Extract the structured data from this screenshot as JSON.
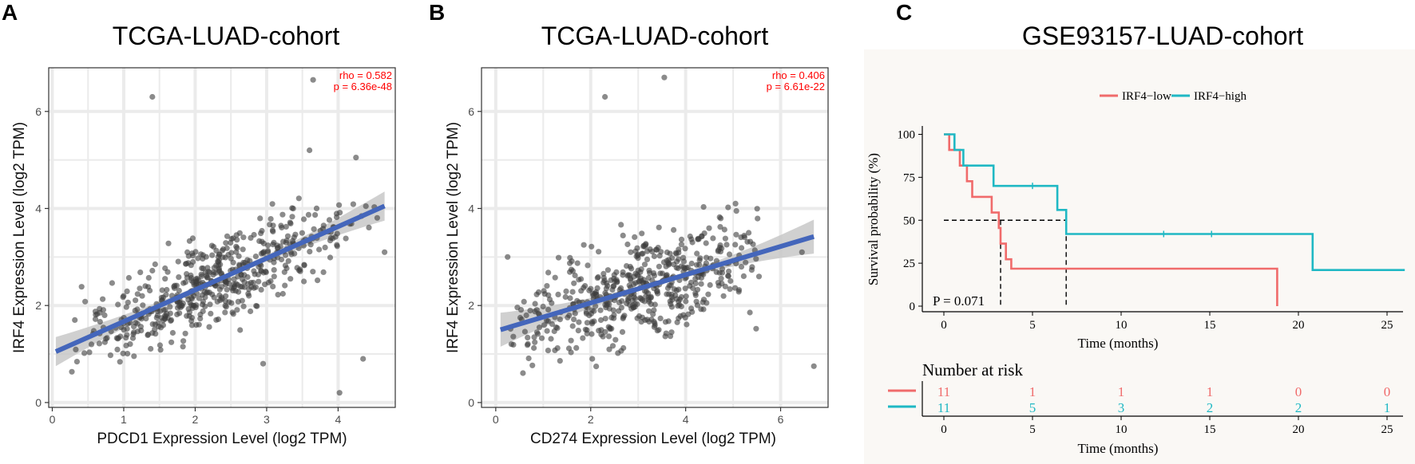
{
  "panel_labels": [
    "A",
    "B",
    "C"
  ],
  "colors": {
    "point": "#3d3d3d",
    "fit_line": "#4466bb",
    "ci_band": "#c8c8c8",
    "stat_text": "#ff0000",
    "km_low": "#f06b6b",
    "km_high": "#1fb8c4",
    "grid": "#ebebeb"
  },
  "chart_data": [
    {
      "type": "scatter",
      "panel": "A",
      "title": "TCGA-LUAD-cohort",
      "xlabel": "PDCD1 Expression Level (log2 TPM)",
      "ylabel": "IRF4 Expression Level (log2 TPM)",
      "xlim": [
        -0.05,
        4.8
      ],
      "ylim": [
        -0.1,
        6.9
      ],
      "xticks": [
        0,
        1,
        2,
        3,
        4
      ],
      "yticks": [
        0,
        2,
        4,
        6
      ],
      "stats": [
        "rho = 0.582",
        "p = 6.36e-48"
      ],
      "fit": {
        "x0": 0.05,
        "y0": 1.05,
        "x1": 4.65,
        "y1": 4.05,
        "ci_mid": 0.05,
        "ci_end": 0.3
      },
      "gen": {
        "n": 540,
        "seed": 11,
        "xmax": 4.7,
        "xshape": 1.6,
        "slope": 0.65,
        "intercept": 1.02,
        "sd": 0.8,
        "ymin": 0.1,
        "ymax": 6.7
      },
      "highlight_points": [
        [
          1.4,
          6.3
        ],
        [
          3.65,
          6.65
        ],
        [
          3.6,
          5.2
        ],
        [
          4.25,
          5.05
        ],
        [
          4.02,
          0.2
        ],
        [
          4.65,
          3.1
        ],
        [
          4.35,
          0.9
        ],
        [
          2.95,
          0.8
        ]
      ]
    },
    {
      "type": "scatter",
      "panel": "B",
      "title": "TCGA-LUAD-cohort",
      "xlabel": "CD274 Expression Level (log2 TPM)",
      "ylabel": "IRF4 Expression Level (log2 TPM)",
      "xlim": [
        -0.3,
        7.0
      ],
      "ylim": [
        -0.1,
        6.9
      ],
      "xticks": [
        0,
        2,
        4,
        6
      ],
      "yticks": [
        0,
        2,
        4,
        6
      ],
      "stats": [
        "rho = 0.406",
        "p = 6.61e-22"
      ],
      "fit": {
        "x0": 0.1,
        "y0": 1.5,
        "x1": 6.7,
        "y1": 3.42,
        "ci_mid": 0.05,
        "ci_end": 0.35
      },
      "gen": {
        "n": 540,
        "seed": 29,
        "xmax": 6.8,
        "xshape": 2.6,
        "slope": 0.29,
        "intercept": 1.47,
        "sd": 1.0,
        "ymin": 0.05,
        "ymax": 6.7
      },
      "highlight_points": [
        [
          3.55,
          6.7
        ],
        [
          2.3,
          6.3
        ],
        [
          6.7,
          0.75
        ],
        [
          5.05,
          4.1
        ],
        [
          6.45,
          3.1
        ],
        [
          0.25,
          3.0
        ]
      ]
    },
    {
      "type": "line",
      "panel": "C",
      "title": "GSE93157-LUAD-cohort",
      "xlabel": "Time (months)",
      "ylabel": "Survival probability (%)",
      "xlim": [
        -1,
        26
      ],
      "ylim": [
        0,
        100
      ],
      "xticks": [
        0,
        5,
        10,
        15,
        20,
        25
      ],
      "yticks": [
        0,
        25,
        50,
        75,
        100
      ],
      "legend": [
        "IRF4−low",
        "IRF4−high"
      ],
      "pvalue": "P = 0.071",
      "median_line": {
        "y": 50,
        "x_low": 3.2,
        "x_high": 6.9
      },
      "series": [
        {
          "name": "IRF4−low",
          "steps": [
            [
              0,
              100
            ],
            [
              0.3,
              90.9
            ],
            [
              0.9,
              81.8
            ],
            [
              1.3,
              72.7
            ],
            [
              1.6,
              63.6
            ],
            [
              2.7,
              54.5
            ],
            [
              3.1,
              45.5
            ],
            [
              3.2,
              36.4
            ],
            [
              3.5,
              27.3
            ],
            [
              3.8,
              21.8
            ],
            [
              18.8,
              0
            ]
          ],
          "censors": []
        },
        {
          "name": "IRF4−high",
          "steps": [
            [
              0,
              100
            ],
            [
              0.6,
              90.9
            ],
            [
              1.1,
              81.8
            ],
            [
              2.8,
              70.0
            ],
            [
              6.4,
              56.0
            ],
            [
              6.9,
              42.0
            ],
            [
              20.8,
              21.0
            ],
            [
              26,
              21.0
            ]
          ],
          "censors": [
            [
              5.0,
              70.0
            ],
            [
              12.4,
              42.0
            ],
            [
              15.1,
              42.0
            ]
          ]
        }
      ],
      "risk_table": {
        "title": "Number at risk",
        "xlabel": "Time (months)",
        "times": [
          0,
          5,
          10,
          15,
          20,
          25
        ],
        "rows": [
          {
            "name": "IRF4−low",
            "values": [
              "11",
              "1",
              "1",
              "1",
              "0",
              "0"
            ]
          },
          {
            "name": "IRF4−high",
            "values": [
              "11",
              "5",
              "3",
              "2",
              "2",
              "1"
            ]
          }
        ]
      }
    }
  ]
}
